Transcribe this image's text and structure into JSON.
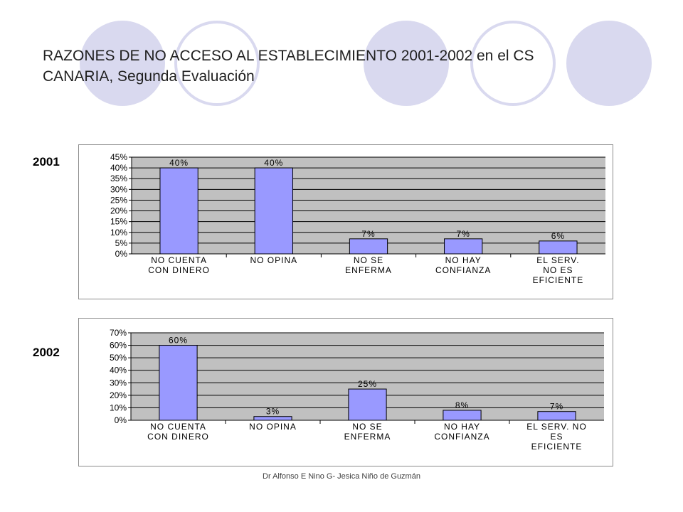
{
  "slide": {
    "title_line1": "RAZONES DE NO ACCESO AL ESTABLECIMIENTO 2001-2002 en el CS",
    "title_line2": "CANARIA, Segunda Evaluación",
    "footer": "Dr Alfonso E Nino G- Jesica Niño de Guzmán",
    "decor_colors": {
      "filled": "#d9d9ef",
      "outline": "#d9d9ef"
    }
  },
  "chart_data": [
    {
      "type": "bar",
      "label": "2001",
      "categories": [
        [
          "NO CUENTA",
          "CON DINERO"
        ],
        [
          "NO OPINA"
        ],
        [
          "NO SE",
          "ENFERMA"
        ],
        [
          "NO HAY",
          "CONFIANZA"
        ],
        [
          "EL SERV.",
          "NO ES",
          "EFICIENTE"
        ]
      ],
      "values": [
        40,
        40,
        7,
        7,
        6
      ],
      "data_labels": [
        "40%",
        "40%",
        "7%",
        "7%",
        "6%"
      ],
      "ylim": [
        0,
        45
      ],
      "yticks": [
        "0%",
        "5%",
        "10%",
        "15%",
        "20%",
        "25%",
        "30%",
        "35%",
        "40%",
        "45%"
      ],
      "grid": true,
      "colors": {
        "bar": "#9999ff",
        "plot_bg": "#c0c0c0",
        "grid": "#000000"
      }
    },
    {
      "type": "bar",
      "label": "2002",
      "categories": [
        [
          "NO CUENTA",
          "CON DINERO"
        ],
        [
          "NO OPINA"
        ],
        [
          "NO SE",
          "ENFERMA"
        ],
        [
          "NO HAY",
          "CONFIANZA"
        ],
        [
          "EL SERV. NO",
          "ES",
          "EFICIENTE"
        ]
      ],
      "values": [
        60,
        3,
        25,
        8,
        7
      ],
      "data_labels": [
        "60%",
        "3%",
        "25%",
        "8%",
        "7%"
      ],
      "ylim": [
        0,
        70
      ],
      "yticks": [
        "0%",
        "10%",
        "20%",
        "30%",
        "40%",
        "50%",
        "60%",
        "70%"
      ],
      "grid": true,
      "colors": {
        "bar": "#9999ff",
        "plot_bg": "#c0c0c0",
        "grid": "#000000"
      }
    }
  ]
}
